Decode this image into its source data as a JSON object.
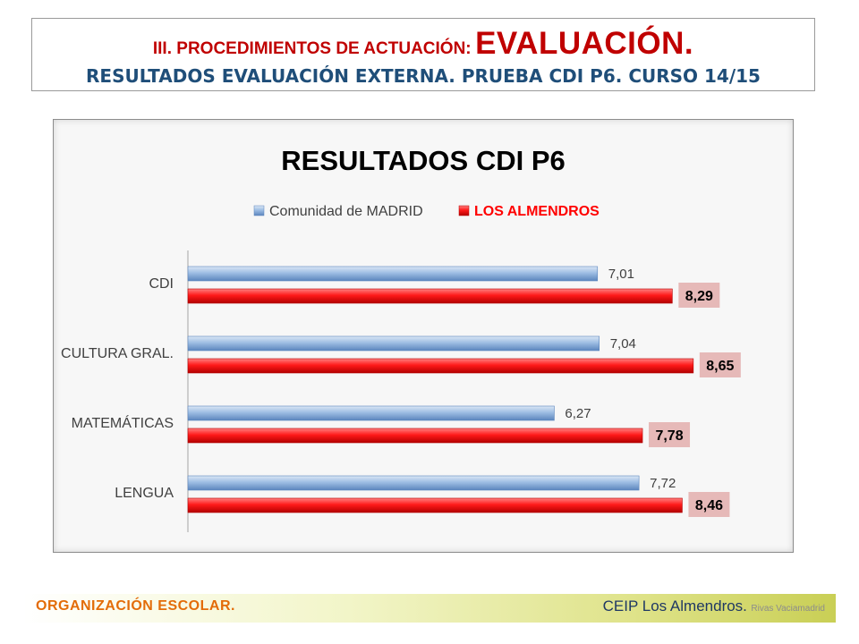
{
  "header": {
    "line1_small": "III. PROCEDIMIENTOS DE ACTUACIÓN:",
    "line1_big": "EVALUACIÓN.",
    "line2": "RESULTADOS EVALUACIÓN EXTERNA. PRUEBA CDI P6. CURSO 14/15"
  },
  "chart_data": {
    "type": "bar",
    "orientation": "horizontal",
    "title": "RESULTADOS CDI P6",
    "categories": [
      "CDI",
      "CULTURA GRAL.",
      "MATEMÁTICAS",
      "LENGUA"
    ],
    "series": [
      {
        "name": "Comunidad de MADRID",
        "values": [
          7.01,
          7.04,
          6.27,
          7.72
        ],
        "labels": [
          "7,01",
          "7,04",
          "6,27",
          "7,72"
        ],
        "color": "#8db3e2"
      },
      {
        "name": "LOS ALMENDROS",
        "values": [
          8.29,
          8.65,
          7.78,
          8.46
        ],
        "labels": [
          "8,29",
          "8,65",
          "7,78",
          "8,46"
        ],
        "color": "#ff0000"
      }
    ],
    "xlim": [
      0,
      10
    ],
    "grid": false,
    "legend_position": "top",
    "highlight_label_bg": "#e6b9b8"
  },
  "footer": {
    "left": "ORGANIZACIÓN ESCOLAR.",
    "school": "CEIP Los Almendros.",
    "town": "Rivas Vaciamadrid"
  }
}
